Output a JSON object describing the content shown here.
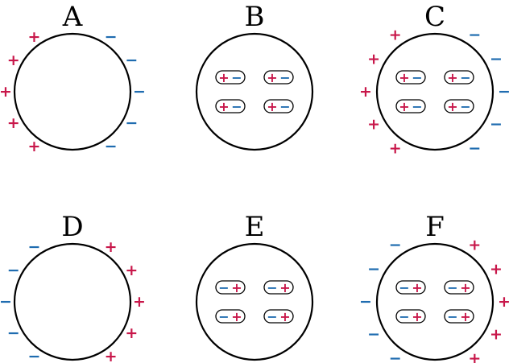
{
  "colors": {
    "positive": "#c8174a",
    "negative": "#1f6cb0",
    "outline": "#000000"
  },
  "symbols": {
    "positive": "+",
    "negative": "−"
  },
  "panels": [
    {
      "label": "A",
      "dipoles": false,
      "outer": true,
      "plus_side": "left",
      "dipole_order": ""
    },
    {
      "label": "B",
      "dipoles": true,
      "outer": false,
      "plus_side": "",
      "dipole_order": "plus-minus"
    },
    {
      "label": "C",
      "dipoles": true,
      "outer": true,
      "plus_side": "left",
      "dipole_order": "plus-minus"
    },
    {
      "label": "D",
      "dipoles": false,
      "outer": true,
      "plus_side": "right",
      "dipole_order": ""
    },
    {
      "label": "E",
      "dipoles": true,
      "outer": false,
      "plus_side": "",
      "dipole_order": "minus-plus"
    },
    {
      "label": "F",
      "dipoles": true,
      "outer": true,
      "plus_side": "right",
      "dipole_order": "minus-plus"
    }
  ]
}
